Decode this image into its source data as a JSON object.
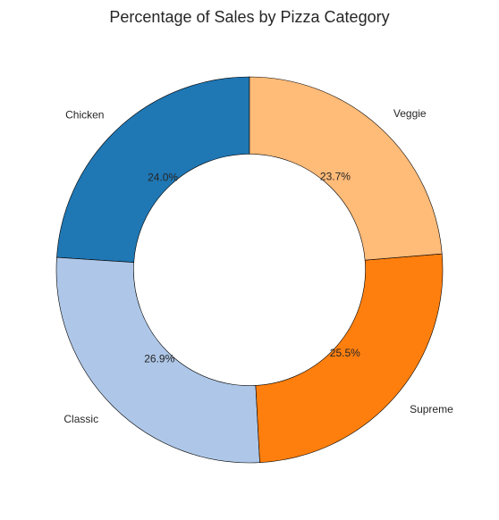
{
  "chart_data": {
    "type": "pie",
    "variant": "donut",
    "title": "Percentage of Sales by Pizza Category",
    "start_angle_deg": 90,
    "direction": "counterclockwise",
    "hole_fraction": 0.6,
    "edge_color": "#000000",
    "slices": [
      {
        "label": "Chicken",
        "value": 24.0,
        "pct_label": "24.0%",
        "color": "#1f77b4"
      },
      {
        "label": "Classic",
        "value": 26.9,
        "pct_label": "26.9%",
        "color": "#aec7e8"
      },
      {
        "label": "Supreme",
        "value": 25.5,
        "pct_label": "25.5%",
        "color": "#ff7f0e"
      },
      {
        "label": "Veggie",
        "value": 23.7,
        "pct_label": "23.7%",
        "color": "#ffbb78"
      }
    ]
  }
}
